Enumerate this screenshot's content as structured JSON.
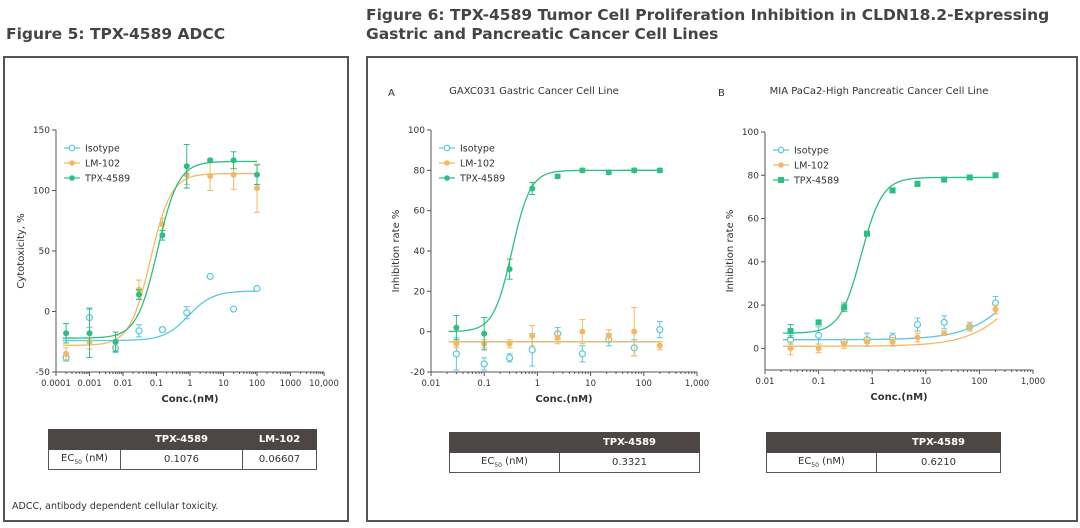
{
  "figure5": {
    "title": "Figure 5: TPX-4589 ADCC",
    "footnote": "ADCC, antibody dependent cellular toxicity.",
    "table": {
      "headers": [
        "",
        "TPX-4589",
        "LM-102"
      ],
      "row_label": "EC",
      "row_label_sub": "50",
      "row_label_unit": " (nM)",
      "values": [
        "0.1076",
        "0.06607"
      ]
    }
  },
  "figure6": {
    "title_line1": "Figure 6: TPX-4589 Tumor Cell Proliferation Inhibition in CLDN18.2-Expressing",
    "title_line2": "Gastric and Pancreatic Cancer Cell Lines",
    "tableA": {
      "headers": [
        "",
        "TPX-4589"
      ],
      "row_label": "EC",
      "row_label_sub": "50",
      "row_label_unit": " (nM)",
      "values": [
        "0.3321"
      ]
    },
    "tableB": {
      "headers": [
        "",
        "TPX-4589"
      ],
      "row_label": "EC",
      "row_label_sub": "50",
      "row_label_unit": " (nM)",
      "values": [
        "0.6210"
      ]
    }
  },
  "colors": {
    "isotype": "#5bc8e0",
    "lm102": "#f5b862",
    "tpx4589": "#2bbf83",
    "frame": "#555555",
    "table_header": "#4d4645"
  },
  "chart_data": [
    {
      "id": "fig5",
      "type": "scatter",
      "title": "",
      "xlabel": "Conc.(nM)",
      "ylabel": "Cytotoxicity, %",
      "xscale": "log",
      "xlim": [
        0.0001,
        10000
      ],
      "ylim": [
        -50,
        150
      ],
      "xticks": [
        0.0001,
        0.001,
        0.01,
        0.1,
        1,
        10,
        100,
        1000,
        10000
      ],
      "xtick_labels": [
        "0.0001",
        "0.001",
        "0.01",
        "0.1",
        "1",
        "10",
        "100",
        "1000",
        "10,000"
      ],
      "yticks": [
        -50,
        0,
        50,
        100,
        150
      ],
      "ytick_labels": [
        "-50",
        "0",
        "50",
        "100",
        "150"
      ],
      "legend_position": "top-left",
      "series": [
        {
          "name": "Isotype",
          "color_key": "isotype",
          "marker": "open-circle",
          "x": [
            0.0002,
            0.001,
            0.006,
            0.03,
            0.15,
            0.8,
            4,
            20,
            100
          ],
          "y": [
            -38,
            -5,
            -30,
            -16,
            -15,
            -1,
            29,
            2,
            19
          ],
          "err": [
            3,
            8,
            4,
            5,
            2,
            5,
            1,
            1,
            1
          ],
          "fit": {
            "bottom": -24,
            "top": 17,
            "ec50": 0.9,
            "hill": 1.2
          }
        },
        {
          "name": "LM-102",
          "color_key": "lm102",
          "marker": "filled-circle",
          "x": [
            0.0002,
            0.001,
            0.006,
            0.03,
            0.15,
            0.8,
            4,
            20,
            100
          ],
          "y": [
            -35,
            -25,
            -25,
            18,
            72,
            113,
            112,
            113,
            102
          ],
          "err": [
            5,
            6,
            5,
            8,
            5,
            8,
            12,
            12,
            20
          ],
          "fit": {
            "bottom": -28,
            "top": 114,
            "ec50": 0.06607,
            "hill": 1.4
          }
        },
        {
          "name": "TPX-4589",
          "color_key": "tpx4589",
          "marker": "filled-circle",
          "x": [
            0.0002,
            0.001,
            0.006,
            0.03,
            0.15,
            0.8,
            4,
            20,
            100
          ],
          "y": [
            -18,
            -18,
            -25,
            14,
            63,
            120,
            125,
            125,
            113
          ],
          "err": [
            8,
            20,
            8,
            4,
            4,
            18,
            1,
            7,
            8
          ],
          "fit": {
            "bottom": -22,
            "top": 124,
            "ec50": 0.1076,
            "hill": 1.4
          }
        }
      ]
    },
    {
      "id": "fig6a",
      "type": "scatter",
      "panel_label": "A",
      "title": "GAXC031 Gastric Cancer Cell Line",
      "xlabel": "Conc.(nM)",
      "ylabel": "Inhibition rate %",
      "xscale": "log",
      "xlim": [
        0.01,
        1000
      ],
      "ylim": [
        -20,
        100
      ],
      "xticks": [
        0.01,
        0.1,
        1,
        10,
        100,
        1000
      ],
      "xtick_labels": [
        "0.01",
        "0.1",
        "1",
        "10",
        "100",
        "1,000"
      ],
      "yticks": [
        -20,
        0,
        20,
        40,
        60,
        80,
        100
      ],
      "ytick_labels": [
        "-20",
        "0",
        "20",
        "40",
        "60",
        "80",
        "100"
      ],
      "legend_position": "top-left",
      "series": [
        {
          "name": "Isotype",
          "color_key": "isotype",
          "marker": "open-circle",
          "x": [
            0.03,
            0.1,
            0.3,
            0.8,
            2.4,
            7,
            22,
            66,
            200
          ],
          "y": [
            -11,
            -16,
            -13,
            -9,
            -1,
            -11,
            -4,
            -8,
            1
          ],
          "err": [
            8,
            3,
            2,
            8,
            3,
            4,
            3,
            4,
            4
          ],
          "fit": {
            "bottom": -5,
            "top": -5,
            "ec50": 1,
            "hill": 1
          }
        },
        {
          "name": "LM-102",
          "color_key": "lm102",
          "marker": "filled-circle",
          "x": [
            0.03,
            0.1,
            0.3,
            0.8,
            2.4,
            7,
            22,
            66,
            200
          ],
          "y": [
            -6,
            -6,
            -6,
            -2,
            -3,
            0,
            -2,
            0,
            -7
          ],
          "err": [
            2,
            2,
            2,
            5,
            3,
            6,
            3,
            12,
            2
          ],
          "fit": {
            "bottom": -5,
            "top": -5,
            "ec50": 1,
            "hill": 1
          }
        },
        {
          "name": "TPX-4589",
          "color_key": "tpx4589",
          "marker": "filled-circle",
          "x": [
            0.03,
            0.1,
            0.3,
            0.8,
            2.4,
            7,
            22,
            66,
            200
          ],
          "y": [
            2,
            -1,
            31,
            71,
            77,
            80,
            79,
            80,
            80
          ],
          "err": [
            6,
            8,
            5,
            3,
            1,
            1,
            1,
            1,
            1
          ],
          "fit": {
            "bottom": 0,
            "top": 80,
            "ec50": 0.3321,
            "hill": 2.5
          }
        }
      ]
    },
    {
      "id": "fig6b",
      "type": "scatter",
      "panel_label": "B",
      "title": "MIA PaCa2-High Pancreatic Cancer Cell Line",
      "xlabel": "Conc.(nM)",
      "ylabel": "Inhibition rate %",
      "xscale": "log",
      "xlim": [
        0.01,
        1000
      ],
      "ylim": [
        -10,
        100
      ],
      "xticks": [
        0.01,
        0.1,
        1,
        10,
        100,
        1000
      ],
      "xtick_labels": [
        "0.01",
        "0.1",
        "1",
        "10",
        "100",
        "1,000"
      ],
      "yticks": [
        0,
        20,
        40,
        60,
        80,
        100
      ],
      "ytick_labels": [
        "0",
        "20",
        "40",
        "60",
        "80",
        "100"
      ],
      "legend_position": "top-left",
      "series": [
        {
          "name": "Isotype",
          "color_key": "isotype",
          "marker": "open-circle",
          "x": [
            0.03,
            0.1,
            0.3,
            0.8,
            2.4,
            7,
            22,
            66,
            200
          ],
          "y": [
            4,
            6,
            3,
            4,
            5,
            11,
            12,
            10,
            21
          ],
          "err": [
            2,
            4,
            1,
            3,
            2,
            3,
            3,
            2,
            3
          ],
          "fit": {
            "bottom": 4,
            "top": 60,
            "ec50": 800,
            "hill": 0.9
          }
        },
        {
          "name": "LM-102",
          "color_key": "lm102",
          "marker": "filled-circle",
          "x": [
            0.03,
            0.1,
            0.3,
            0.8,
            2.4,
            7,
            22,
            66,
            200
          ],
          "y": [
            0,
            0,
            2,
            3,
            3,
            5,
            7,
            10,
            18
          ],
          "err": [
            3,
            2,
            2,
            2,
            2,
            2,
            1,
            2,
            2
          ],
          "fit": {
            "bottom": 1,
            "top": 60,
            "ec50": 900,
            "hill": 0.9
          }
        },
        {
          "name": "TPX-4589",
          "color_key": "tpx4589",
          "marker": "filled-square",
          "x": [
            0.03,
            0.1,
            0.3,
            0.8,
            2.4,
            7,
            22,
            66,
            200
          ],
          "y": [
            8,
            12,
            19,
            53,
            73,
            76,
            78,
            79,
            80
          ],
          "err": [
            3,
            1,
            2,
            1,
            1,
            1,
            1,
            1,
            1
          ],
          "fit": {
            "bottom": 7,
            "top": 79,
            "ec50": 0.621,
            "hill": 2.2
          }
        }
      ]
    }
  ]
}
